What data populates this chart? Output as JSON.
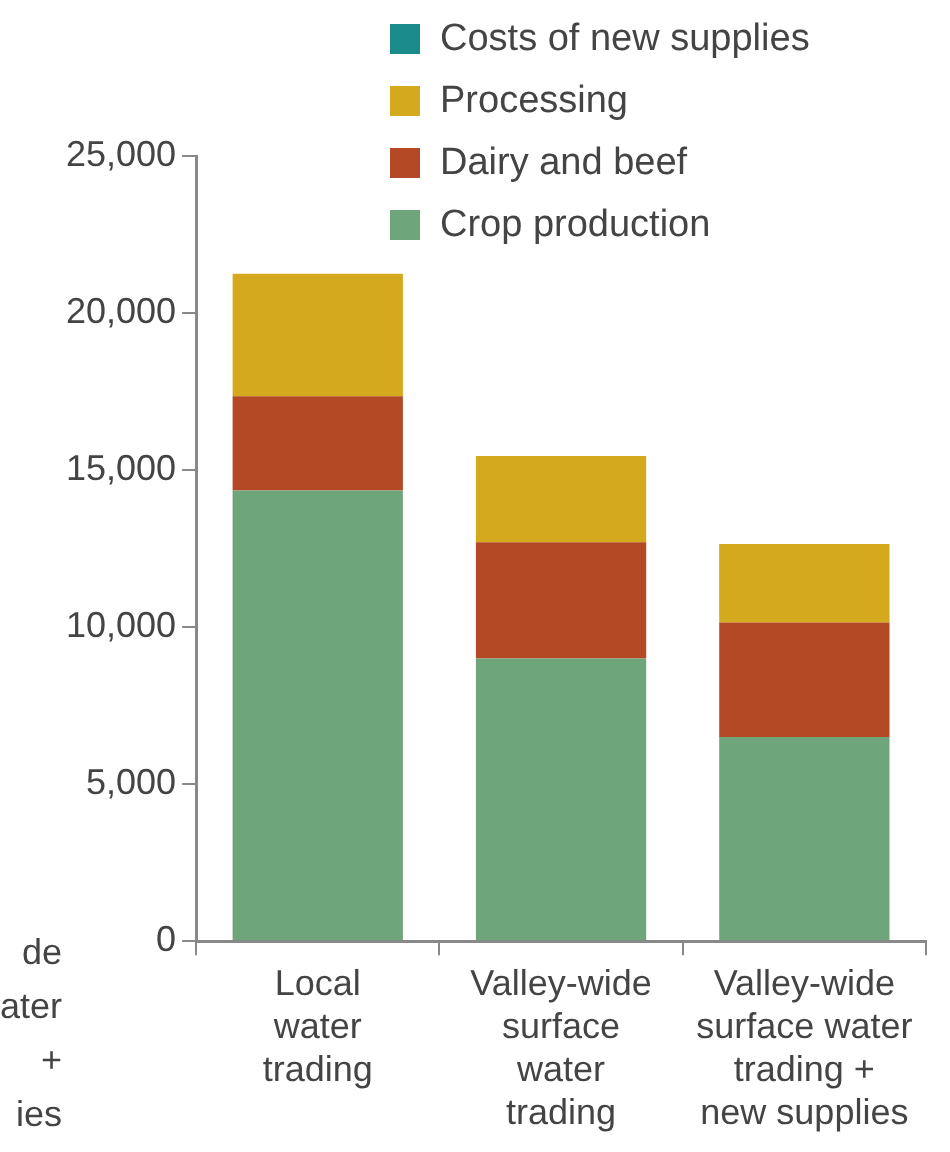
{
  "chart_data": {
    "type": "bar",
    "stacked": true,
    "categories": [
      "Local\nwater\ntrading",
      "Valley-wide\nsurface\nwater\ntrading",
      "Valley-wide\nsurface water\ntrading +\nnew supplies"
    ],
    "series": [
      {
        "name": "Crop production",
        "color": "#6fa57a",
        "values": [
          14350,
          9000,
          6500
        ]
      },
      {
        "name": "Dairy and beef",
        "color": "#b34a25",
        "values": [
          3000,
          3700,
          3650
        ]
      },
      {
        "name": "Processing",
        "color": "#d4a91e",
        "values": [
          3900,
          2750,
          2500
        ]
      },
      {
        "name": "Costs of new supplies",
        "color": "#1a8a8a",
        "values": [
          0,
          0,
          0
        ]
      }
    ],
    "ylim": [
      0,
      25000
    ],
    "yticks": [
      {
        "value": 0,
        "label": "0"
      },
      {
        "value": 5000,
        "label": "5,000"
      },
      {
        "value": 10000,
        "label": "10,000"
      },
      {
        "value": 15000,
        "label": "15,000"
      },
      {
        "value": 20000,
        "label": "20,000"
      },
      {
        "value": 25000,
        "label": "25,000"
      }
    ],
    "grid": false,
    "legend": "top right",
    "annotations": [
      "de\nater\n+\nies"
    ]
  }
}
